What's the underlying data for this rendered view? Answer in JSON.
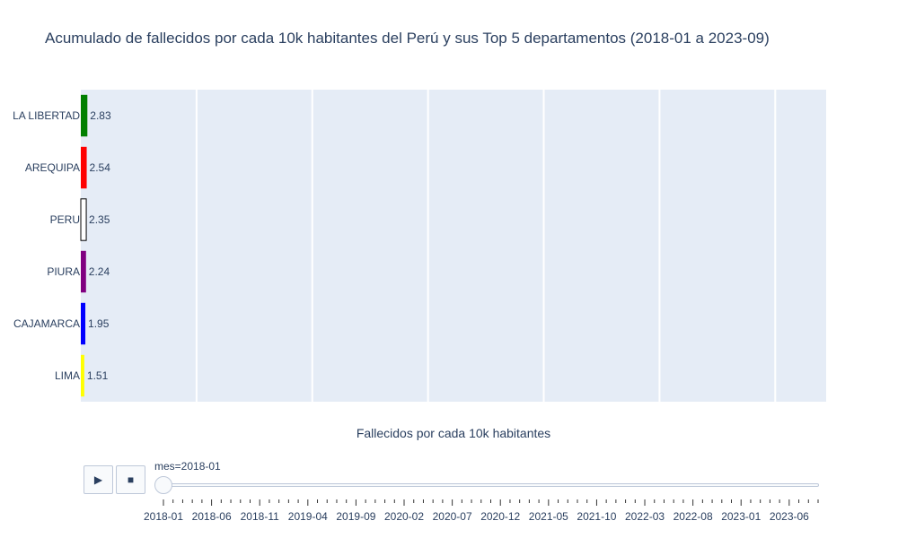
{
  "title": "Acumulado de fallecidos por cada 10k habitantes del Perú y sus Top 5 departamentos (2018-01 a 2023-09)",
  "xlabel": "Fallecidos por cada 10k habitantes",
  "controls": {
    "play_icon": "▶",
    "stop_icon": "■"
  },
  "slider": {
    "prefix": "mes=2018-01",
    "current": "2018-01",
    "months_from": "2018-01",
    "months_to": "2023-09",
    "labels": [
      "2018-01",
      "2018-06",
      "2018-11",
      "2019-04",
      "2019-09",
      "2020-02",
      "2020-07",
      "2020-12",
      "2021-05",
      "2021-10",
      "2022-03",
      "2022-08",
      "2023-01",
      "2023-06"
    ]
  },
  "chart_data": {
    "type": "bar",
    "orientation": "horizontal",
    "title": "Acumulado de fallecidos por cada 10k habitantes del Perú y sus Top 5 departamentos (2018-01 a 2023-09)",
    "xlabel": "Fallecidos por cada 10k habitantes",
    "ylabel": "",
    "categories": [
      "LA LIBERTAD",
      "AREQUIPA",
      "PERU",
      "PIURA",
      "CAJAMARCA",
      "LIMA"
    ],
    "values": [
      2.83,
      2.54,
      2.35,
      2.24,
      1.95,
      1.51
    ],
    "colors": [
      "#008000",
      "#ff0000",
      "#ffffff",
      "#800080",
      "#0000ff",
      "#ffff00"
    ],
    "outline_colors": [
      "",
      "",
      "#000000",
      "",
      "",
      ""
    ],
    "xlim": [
      0,
      322
    ],
    "x_gridlines": [
      50,
      100,
      150,
      200,
      250,
      300
    ],
    "grid": true,
    "data_labels": [
      "2.83",
      "2.54",
      "2.35",
      "2.24",
      "1.95",
      "1.51"
    ]
  }
}
